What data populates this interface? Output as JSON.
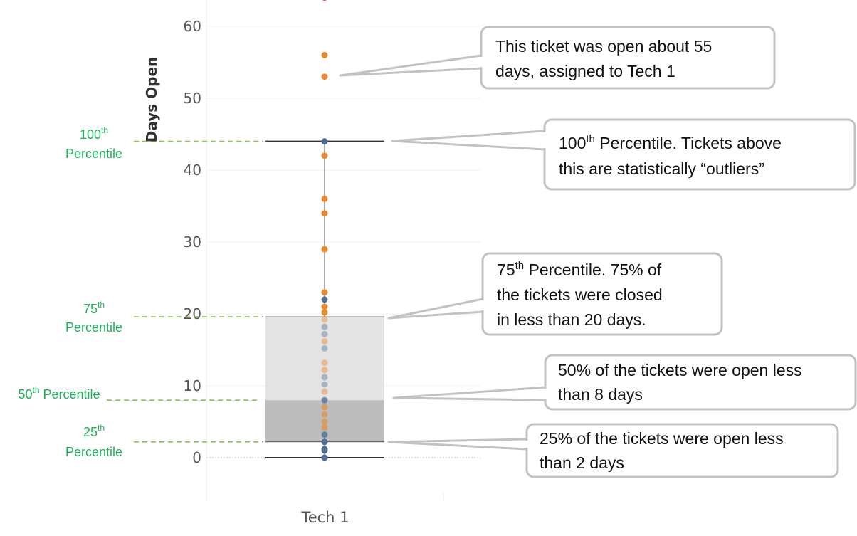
{
  "chart_data": {
    "type": "box",
    "ylabel": "Days Open",
    "categories": [
      "Tech 1"
    ],
    "yticks": [
      0,
      10,
      20,
      30,
      40,
      50,
      60
    ],
    "ylim": [
      -6,
      64
    ],
    "box": {
      "category": "Tech 1",
      "min": 0,
      "q1": 2.2,
      "median": 8,
      "q3": 19.6,
      "whisker_high": 44
    },
    "outliers": [
      56,
      53,
      64
    ],
    "points": [
      {
        "y": 44,
        "c": "#4e6f91",
        "o": 1
      },
      {
        "y": 42,
        "c": "#e8892c",
        "o": 1
      },
      {
        "y": 36,
        "c": "#e8892c",
        "o": 1
      },
      {
        "y": 34,
        "c": "#e8892c",
        "o": 1
      },
      {
        "y": 29,
        "c": "#e8892c",
        "o": 1
      },
      {
        "y": 23,
        "c": "#e8892c",
        "o": 1
      },
      {
        "y": 22,
        "c": "#4e6f91",
        "o": 1
      },
      {
        "y": 21,
        "c": "#e8892c",
        "o": 1
      },
      {
        "y": 20.2,
        "c": "#e8892c",
        "o": 1
      },
      {
        "y": 19.2,
        "c": "#e8892c",
        "o": 0.45
      },
      {
        "y": 18.2,
        "c": "#4e6f91",
        "o": 0.4
      },
      {
        "y": 17.2,
        "c": "#4e6f91",
        "o": 0.4
      },
      {
        "y": 16.2,
        "c": "#e8892c",
        "o": 0.45
      },
      {
        "y": 15.2,
        "c": "#4e6f91",
        "o": 0.4
      },
      {
        "y": 13.2,
        "c": "#e8892c",
        "o": 0.45
      },
      {
        "y": 12.2,
        "c": "#e8892c",
        "o": 0.45
      },
      {
        "y": 11.2,
        "c": "#4e6f91",
        "o": 0.4
      },
      {
        "y": 10.2,
        "c": "#4e6f91",
        "o": 0.4
      },
      {
        "y": 9.2,
        "c": "#e8892c",
        "o": 0.45
      },
      {
        "y": 8,
        "c": "#4e6f91",
        "o": 0.75
      },
      {
        "y": 7,
        "c": "#e8892c",
        "o": 0.6
      },
      {
        "y": 6,
        "c": "#e8892c",
        "o": 0.6
      },
      {
        "y": 5,
        "c": "#e8892c",
        "o": 0.6
      },
      {
        "y": 4.2,
        "c": "#e8892c",
        "o": 0.6
      },
      {
        "y": 3.2,
        "c": "#4e6f91",
        "o": 0.8
      },
      {
        "y": 2.2,
        "c": "#4e6f91",
        "o": 1
      },
      {
        "y": 1.2,
        "c": "#4e6f91",
        "o": 1
      },
      {
        "y": 1,
        "c": "#4e6f91",
        "o": 1
      },
      {
        "y": 0,
        "c": "#4e6f91",
        "o": 1
      }
    ],
    "point_points_outliers": [
      {
        "y": 56,
        "c": "#e8892c",
        "o": 1
      },
      {
        "y": 53,
        "c": "#e8892c",
        "o": 1
      },
      {
        "y": 64,
        "c": "#e0523f",
        "o": 1
      }
    ],
    "percentile_labels": [
      {
        "key": "p100",
        "base": "100",
        "sup": "th",
        "line2": "Percentile",
        "value": 44
      },
      {
        "key": "p75",
        "base": "75",
        "sup": "th",
        "line2": "Percentile",
        "value": 19.6
      },
      {
        "key": "p50",
        "base": "50",
        "sup": "th",
        "rest": " Percentile",
        "value": 8
      },
      {
        "key": "p25",
        "base": "25",
        "sup": "th",
        "line2": "Percentile",
        "value": 2.2
      }
    ],
    "callouts": [
      {
        "key": "outlier",
        "lines": [
          "This ticket was open about 55",
          "days, assigned to Tech 1"
        ]
      },
      {
        "key": "p100",
        "sup_base": "100",
        "sup": "th",
        "line1_rest": " Percentile. Tickets above",
        "lines": [
          "this are statistically “outliers”"
        ]
      },
      {
        "key": "p75",
        "sup_base": "75",
        "sup": "th",
        "line1_rest": " Percentile. 75% of",
        "lines": [
          "the tickets were closed",
          "in less than 20 days."
        ]
      },
      {
        "key": "p50",
        "lines": [
          "50% of the tickets were open less",
          "than 8 days"
        ]
      },
      {
        "key": "p25",
        "lines": [
          "25% of the tickets were open less",
          "than 2 days"
        ]
      }
    ],
    "colors": {
      "orange": "#e8892c",
      "blue": "#4e6f91",
      "box_upper": "#e3e3e3",
      "box_lower": "#bcbcbc",
      "guide": "#8bc34a",
      "label_green": "#1db35a",
      "callout_border": "#c2c2c2"
    }
  }
}
